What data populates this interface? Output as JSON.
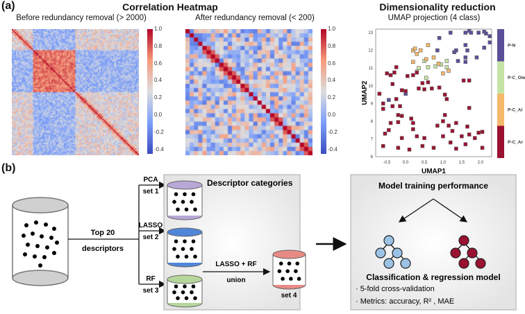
{
  "panel_a": {
    "label": "(a)",
    "heatmap_title": "Correlation Heatmap",
    "heatmap_before_title": "Before redundancy removal (> 2000)",
    "heatmap_after_title": "After redundancy removal (< 200)",
    "colorbar_ticks": [
      "1.0",
      "0.8",
      "0.6",
      "0.4",
      "0.2",
      "0.0",
      "-0.2",
      "-0.4"
    ],
    "dimred_title": "Dimensionality reduction",
    "umap_title": "UMAP projection (4 class)"
  },
  "chart_data": [
    {
      "type": "heatmap",
      "title": "Before redundancy removal (> 2000)",
      "value_range": [
        -0.4,
        1.0
      ],
      "colormap": "coolwarm"
    },
    {
      "type": "heatmap",
      "title": "After redundancy removal (< 200)",
      "value_range": [
        -0.4,
        1.0
      ],
      "colormap": "coolwarm"
    },
    {
      "type": "scatter",
      "title": "UMAP projection (4 class)",
      "xlabel": "UMAP1",
      "ylabel": "UMAP2",
      "xlim": [
        -0.8,
        2.3
      ],
      "ylim": [
        6,
        13.2
      ],
      "xticks": [
        "-0.5",
        "0.0",
        "0.5",
        "1.0",
        "1.5",
        "2.0"
      ],
      "yticks": [
        "6",
        "7",
        "8",
        "9",
        "10",
        "11",
        "12",
        "13"
      ],
      "legend": [
        {
          "name": "P-N",
          "color": "#5b4f9a"
        },
        {
          "name": "P-C_Ole",
          "color": "#c6e3a6"
        },
        {
          "name": "P-C_Al",
          "color": "#f5b96c"
        },
        {
          "name": "P-C_Ar",
          "color": "#9b1131"
        }
      ],
      "series": [
        {
          "name": "P-N",
          "points": [
            [
              0.9,
              12.7
            ],
            [
              1.2,
              13.0
            ],
            [
              1.6,
              13.0
            ],
            [
              1.7,
              13.1
            ],
            [
              1.75,
              13.0
            ],
            [
              1.95,
              13.0
            ],
            [
              2.1,
              13.05
            ],
            [
              2.15,
              12.95
            ],
            [
              2.25,
              12.8
            ],
            [
              2.25,
              12.45
            ],
            [
              2.1,
              12.15
            ],
            [
              1.6,
              12.3
            ],
            [
              1.65,
              12.0
            ],
            [
              1.3,
              11.9
            ],
            [
              1.35,
              12.0
            ],
            [
              1.4,
              11.4
            ],
            [
              1.6,
              11.6
            ],
            [
              1.6,
              11.35
            ],
            [
              1.9,
              11.6
            ],
            [
              0.85,
              12.0
            ],
            [
              0.0,
              9.55
            ],
            [
              -0.45,
              9.2
            ]
          ]
        },
        {
          "name": "P-C_Ole",
          "points": [
            [
              0.35,
              11.0
            ],
            [
              0.3,
              10.8
            ],
            [
              0.6,
              11.05
            ],
            [
              0.55,
              10.45
            ],
            [
              0.5,
              11.4
            ],
            [
              1.1,
              11.4
            ],
            [
              1.1,
              11.05
            ],
            [
              0.8,
              11.1
            ],
            [
              0.95,
              11.2
            ]
          ]
        },
        {
          "name": "P-C_Al",
          "points": [
            [
              0.2,
              12.0
            ],
            [
              0.25,
              12.1
            ],
            [
              0.3,
              11.8
            ],
            [
              0.4,
              12.0
            ],
            [
              0.6,
              12.3
            ],
            [
              0.55,
              11.5
            ],
            [
              0.75,
              11.6
            ],
            [
              0.88,
              11.25
            ],
            [
              1.0,
              10.7
            ],
            [
              1.15,
              10.85
            ],
            [
              0.2,
              11.35
            ]
          ]
        },
        {
          "name": "P-C_Ar",
          "points": [
            [
              -0.7,
              9.55
            ],
            [
              -0.6,
              9.0
            ],
            [
              -0.6,
              8.7
            ],
            [
              -0.5,
              10.7
            ],
            [
              -0.4,
              10.6
            ],
            [
              -0.3,
              10.75
            ],
            [
              -0.25,
              11.05
            ],
            [
              -0.35,
              10.1
            ],
            [
              -0.25,
              9.25
            ],
            [
              -0.35,
              8.85
            ],
            [
              -0.2,
              8.35
            ],
            [
              -0.1,
              8.3
            ],
            [
              -0.15,
              8.85
            ],
            [
              -0.1,
              9.75
            ],
            [
              0.0,
              9.7
            ],
            [
              0.05,
              10.55
            ],
            [
              0.2,
              10.6
            ],
            [
              0.3,
              10.75
            ],
            [
              0.35,
              9.85
            ],
            [
              0.45,
              10.15
            ],
            [
              0.5,
              9.8
            ],
            [
              0.6,
              10.2
            ],
            [
              0.7,
              9.85
            ],
            [
              0.9,
              9.9
            ],
            [
              1.05,
              9.5
            ],
            [
              1.1,
              9.25
            ],
            [
              1.55,
              10.3
            ],
            [
              1.7,
              10.3
            ],
            [
              1.7,
              8.75
            ],
            [
              -0.4,
              7.9
            ],
            [
              -0.45,
              7.5
            ],
            [
              -0.55,
              7.3
            ],
            [
              -0.2,
              7.95
            ],
            [
              0.15,
              8.15
            ],
            [
              0.2,
              7.9
            ],
            [
              0.2,
              7.55
            ],
            [
              0.85,
              7.75
            ],
            [
              1.0,
              8.0
            ],
            [
              1.05,
              8.35
            ],
            [
              1.15,
              7.75
            ],
            [
              1.25,
              7.45
            ],
            [
              1.35,
              7.9
            ],
            [
              1.65,
              7.7
            ],
            [
              1.7,
              7.25
            ],
            [
              1.95,
              7.35
            ],
            [
              2.05,
              7.4
            ],
            [
              -0.1,
              7.05
            ],
            [
              0.3,
              7.15
            ],
            [
              0.5,
              7.05
            ],
            [
              1.0,
              7.15
            ],
            [
              1.5,
              7.15
            ],
            [
              1.85,
              7.05
            ],
            [
              -0.6,
              6.6
            ],
            [
              -0.2,
              6.5
            ],
            [
              0.1,
              6.4
            ],
            [
              0.45,
              6.6
            ],
            [
              0.75,
              6.5
            ],
            [
              1.2,
              6.8
            ],
            [
              1.35,
              6.45
            ],
            [
              1.6,
              6.7
            ],
            [
              2.05,
              6.5
            ]
          ]
        }
      ]
    }
  ],
  "panel_b": {
    "label": "(b)",
    "top_label_1": "Top 20",
    "top_label_2": "descriptors",
    "branches": [
      {
        "method": "PCA",
        "set": "set 1",
        "color": "#b9a7d6"
      },
      {
        "method": "LASSO",
        "set": "set 2",
        "color": "#4f86d8"
      },
      {
        "method": "RF",
        "set": "set 3",
        "color": "#b6d79c"
      }
    ],
    "categories_title": "Descriptor categories",
    "union_label": "LASSO + RF",
    "union_sub": "union",
    "set4": "set 4",
    "set4_color": "#e88a84",
    "model_title": "Model training performance",
    "model_subtitle": "Classification & regression model",
    "bullets": [
      "· 5-fold cross-validation",
      "· Metrics: accuracy, R² , MAE"
    ]
  }
}
